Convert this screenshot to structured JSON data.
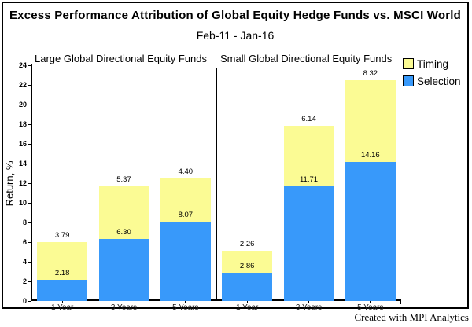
{
  "window": {
    "footer_credit": "Created with MPI Analytics"
  },
  "chart_data": {
    "type": "bar",
    "stacked": true,
    "title": "Excess Performance Attribution of Global Equity Hedge Funds vs. MSCI World",
    "subtitle": "Feb-11 - Jan-16",
    "ylabel": "Return, %",
    "ylim": [
      0,
      24
    ],
    "ytick_step": 2,
    "grid": false,
    "background": "#ffffff",
    "legend": {
      "position": "top-right",
      "entries": [
        {
          "label": "Timing",
          "color": "#FBFB94"
        },
        {
          "label": "Selection",
          "color": "#3899FA"
        }
      ]
    },
    "series_stack_order_bottom_to_top": [
      "Selection",
      "Timing"
    ],
    "panels": [
      {
        "title": "Large Global Directional Equity Funds",
        "categories": [
          "1 Year",
          "3 Years",
          "5 Years"
        ],
        "series": [
          {
            "name": "Selection",
            "color": "#3899FA",
            "values": [
              2.18,
              6.3,
              8.07
            ],
            "labels": [
              "2.18",
              "6.30",
              "8.07"
            ]
          },
          {
            "name": "Timing",
            "color": "#FBFB94",
            "values": [
              3.79,
              5.37,
              4.4
            ],
            "labels": [
              "3.79",
              "5.37",
              "4.40"
            ]
          }
        ]
      },
      {
        "title": "Small Global Directional Equity Funds",
        "categories": [
          "1 Year",
          "3 Years",
          "5 Years"
        ],
        "series": [
          {
            "name": "Selection",
            "color": "#3899FA",
            "values": [
              2.86,
              11.71,
              14.16
            ],
            "labels": [
              "2.86",
              "11.71",
              "14.16"
            ]
          },
          {
            "name": "Timing",
            "color": "#FBFB94",
            "values": [
              2.26,
              6.14,
              8.32
            ],
            "labels": [
              "2.26",
              "6.14",
              "8.32"
            ]
          }
        ]
      }
    ]
  }
}
